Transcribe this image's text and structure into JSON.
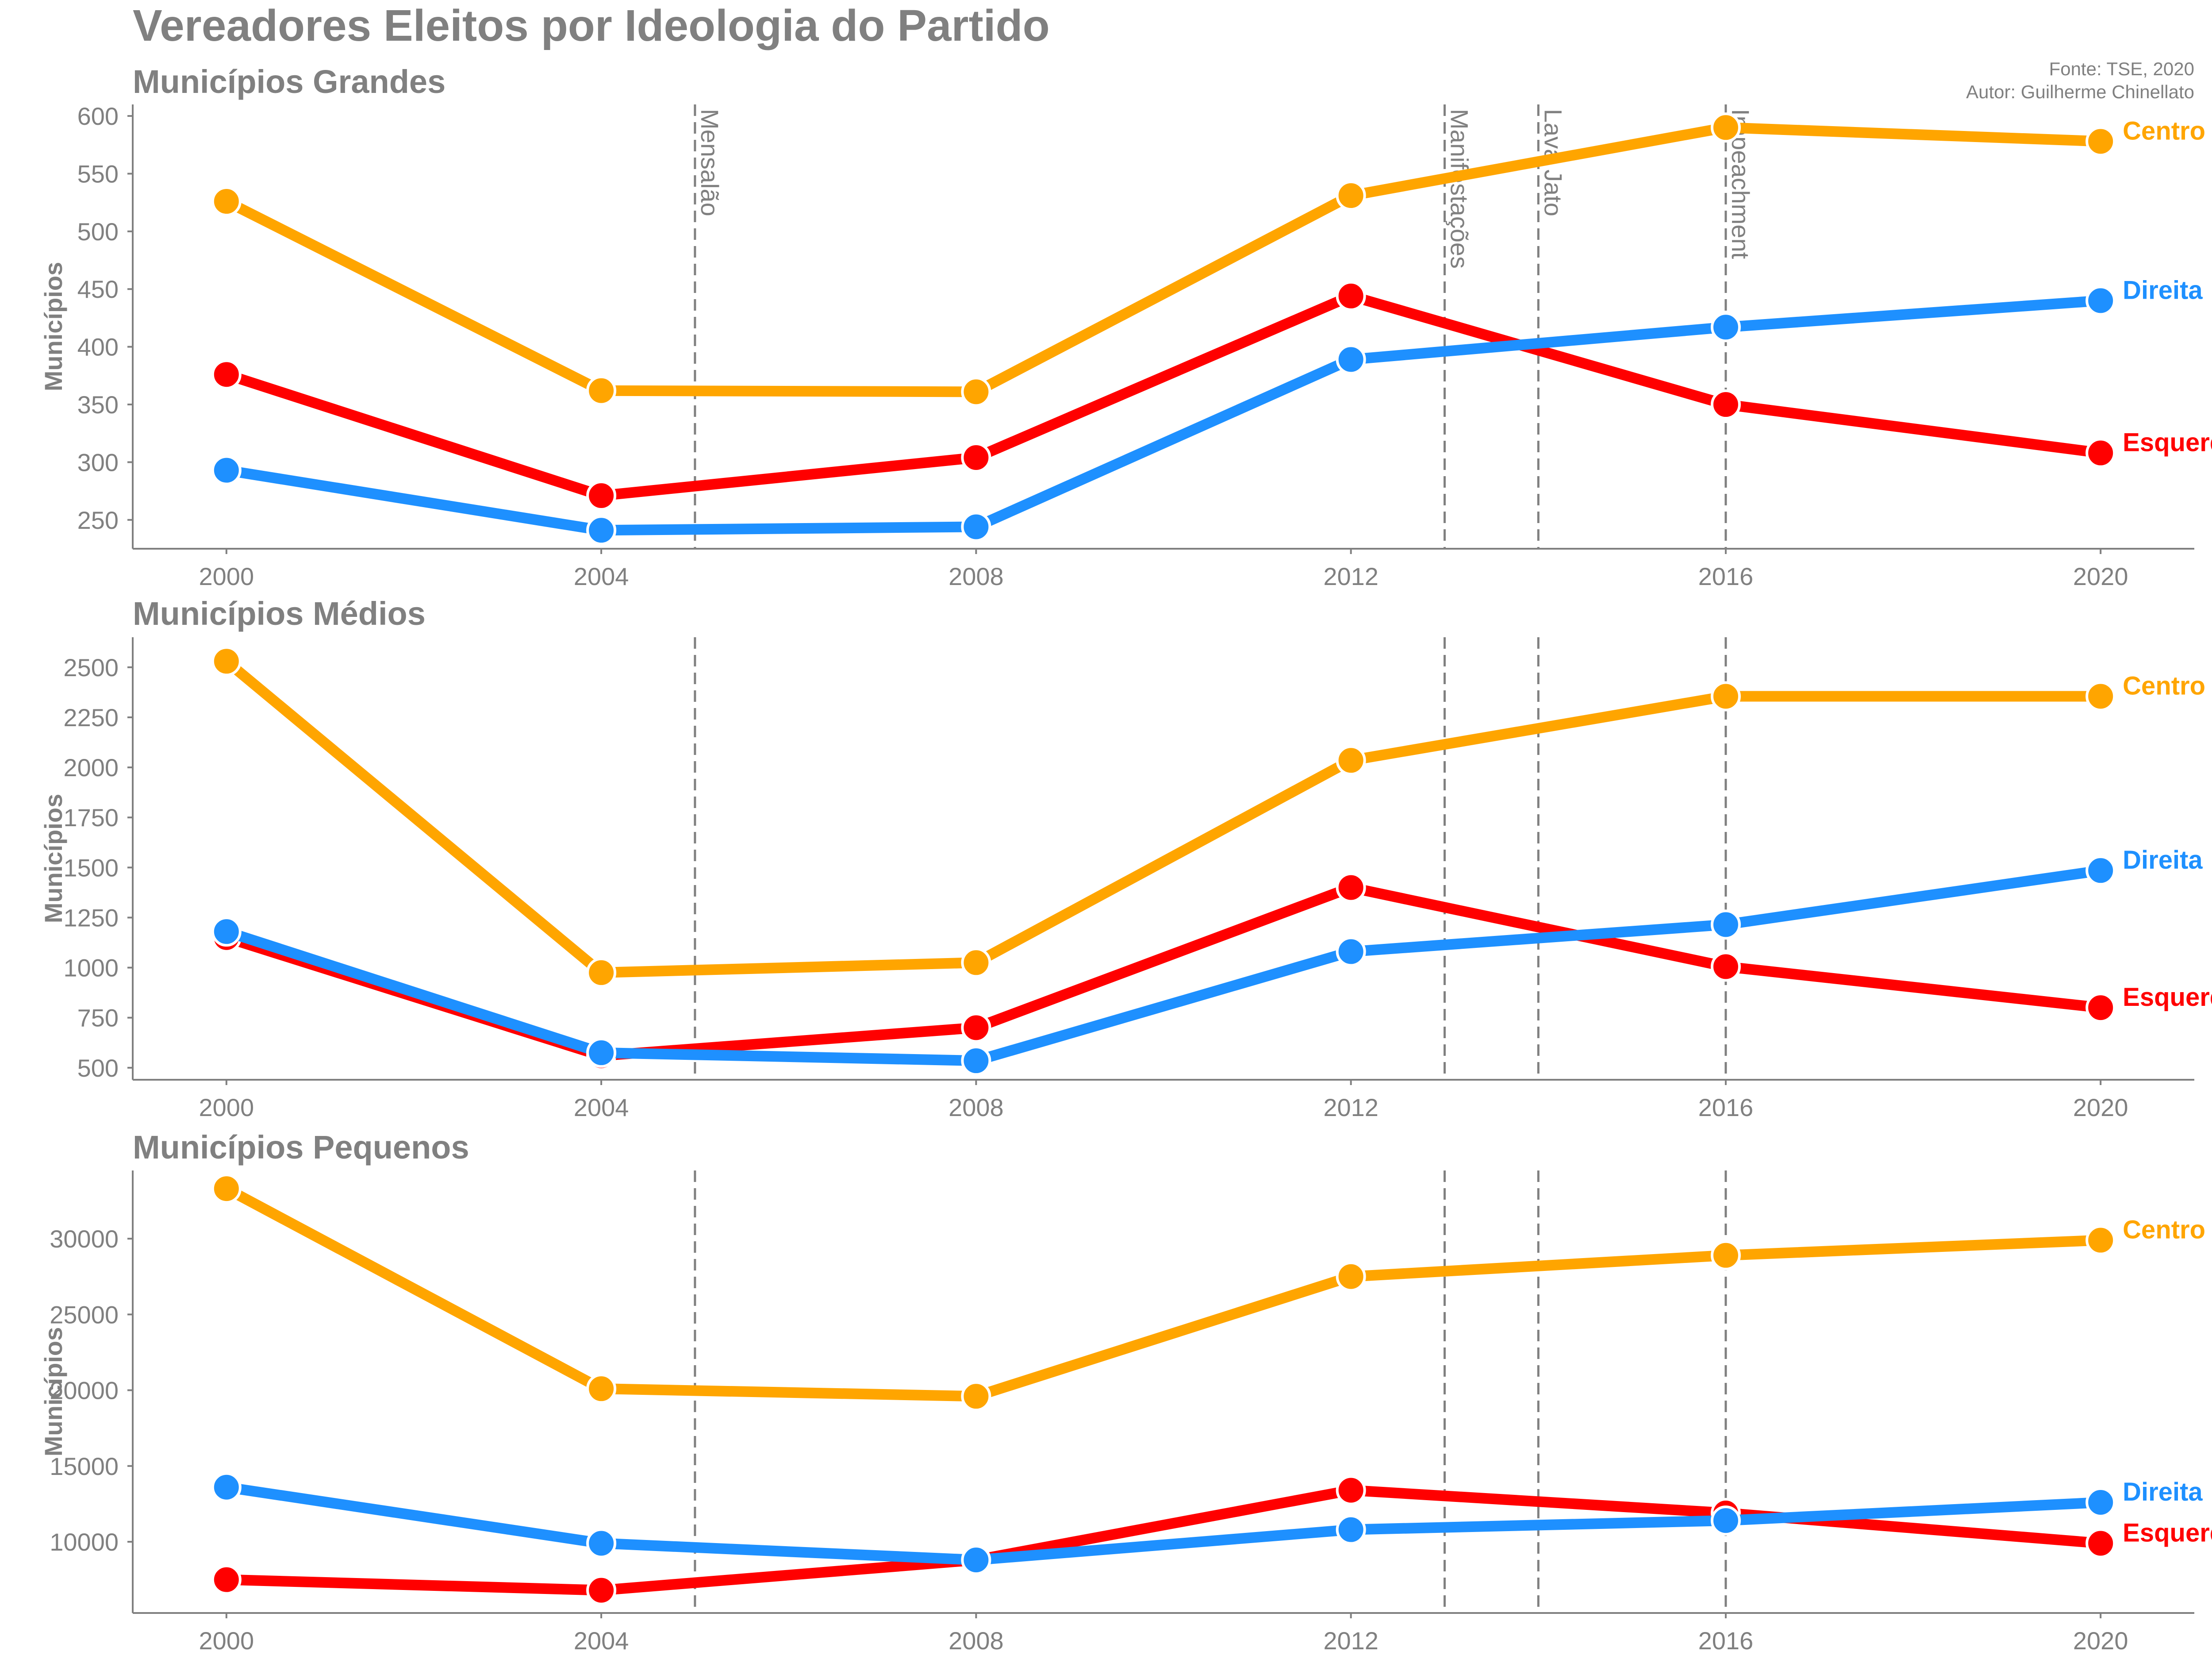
{
  "title": "Vereadores Eleitos por Ideologia do Partido",
  "source": "Fonte: TSE, 2020",
  "author": "Autor: Guilherme Chinellato",
  "colors": {
    "Centro": "#FFA500",
    "Direita": "#1E90FF",
    "Esquerda": "#FF0000",
    "text": "#808080",
    "axis": "#808080",
    "event_line": "#808080"
  },
  "events": [
    {
      "year": 2005,
      "label": "Mensalão"
    },
    {
      "year": 2013,
      "label": "Manifestações"
    },
    {
      "year": 2014,
      "label": "Lava Jato"
    },
    {
      "year": 2016,
      "label": "Impeachment"
    }
  ],
  "chart_data": [
    {
      "type": "line",
      "title": "Municípios Grandes",
      "ylabel": "Municípios",
      "x": [
        2000,
        2004,
        2008,
        2012,
        2016,
        2020
      ],
      "xlim": [
        1999,
        2021
      ],
      "ylim": [
        225,
        610
      ],
      "yticks": [
        250,
        300,
        350,
        400,
        450,
        500,
        550,
        600
      ],
      "ytick_labels": [
        "250",
        "300",
        "350",
        "400",
        "450",
        "500",
        "550",
        "600"
      ],
      "event_labels": true,
      "grid": false,
      "series": [
        {
          "name": "Esquerda",
          "values": [
            376,
            271,
            304,
            444,
            350,
            308
          ]
        },
        {
          "name": "Direita",
          "values": [
            293,
            241,
            244,
            389,
            417,
            440
          ]
        },
        {
          "name": "Centro",
          "values": [
            526,
            362,
            361,
            531,
            590,
            578
          ]
        }
      ]
    },
    {
      "type": "line",
      "title": "Municípios Médios",
      "ylabel": "Municípios",
      "x": [
        2000,
        2004,
        2008,
        2012,
        2016,
        2020
      ],
      "xlim": [
        1999,
        2021
      ],
      "ylim": [
        440,
        2650
      ],
      "yticks": [
        500,
        750,
        1000,
        1250,
        1500,
        1750,
        2000,
        2250,
        2500
      ],
      "ytick_labels": [
        "500",
        "750",
        "1000",
        "1250",
        "1500",
        "1750",
        "2000",
        "2250",
        "2500"
      ],
      "event_labels": false,
      "grid": false,
      "series": [
        {
          "name": "Esquerda",
          "values": [
            1150,
            560,
            700,
            1400,
            1005,
            800
          ]
        },
        {
          "name": "Direita",
          "values": [
            1180,
            575,
            535,
            1080,
            1215,
            1485
          ]
        },
        {
          "name": "Centro",
          "values": [
            2530,
            975,
            1025,
            2035,
            2355,
            2355
          ]
        }
      ]
    },
    {
      "type": "line",
      "title": "Municípios Pequenos",
      "ylabel": "Municípios",
      "x": [
        2000,
        2004,
        2008,
        2012,
        2016,
        2020
      ],
      "xlim": [
        1999,
        2021
      ],
      "ylim": [
        5300,
        34500
      ],
      "yticks": [
        10000,
        15000,
        20000,
        25000,
        30000
      ],
      "ytick_labels": [
        "10000",
        "15000",
        "20000",
        "25000",
        "30000"
      ],
      "event_labels": false,
      "grid": false,
      "series": [
        {
          "name": "Esquerda",
          "values": [
            7500,
            6800,
            8800,
            13400,
            11900,
            9900
          ]
        },
        {
          "name": "Direita",
          "values": [
            13600,
            9900,
            8800,
            10800,
            11400,
            12600
          ]
        },
        {
          "name": "Centro",
          "values": [
            33300,
            20100,
            19600,
            27500,
            28900,
            29900
          ]
        }
      ]
    }
  ]
}
